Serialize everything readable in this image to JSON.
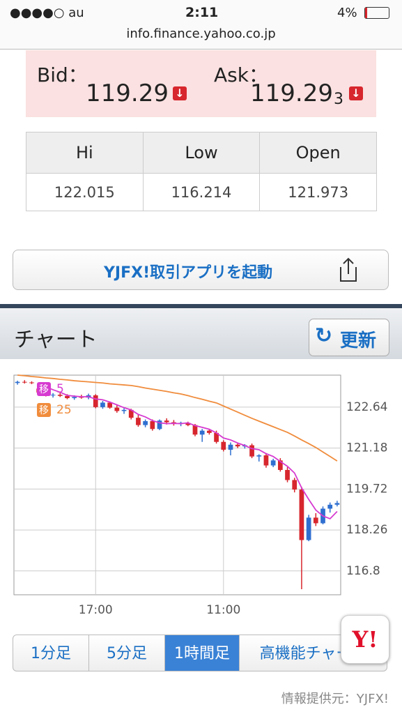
{
  "status_bar": {
    "carrier": "●●●●○ au",
    "time": "2:11",
    "battery": "4%"
  },
  "url": "info.finance.yahoo.co.jp",
  "quote": {
    "bid_label": "Bid：",
    "bid": "119.29",
    "ask_label": "Ask：",
    "ask": "119.29",
    "ask_extra_digit": "3"
  },
  "stats_table": {
    "headers": [
      "Hi",
      "Low",
      "Open"
    ],
    "values": [
      "122.015",
      "116.214",
      "121.973"
    ]
  },
  "app_button": "YJFX!取引アプリを起動",
  "section": {
    "title": "チャート",
    "refresh": "更新"
  },
  "chart": {
    "type": "candlestick",
    "categories": [
      null,
      null,
      null,
      null,
      null,
      null,
      null,
      null,
      null,
      null,
      null,
      "17:00",
      null,
      null,
      null,
      null,
      null,
      null,
      null,
      null,
      null,
      null,
      null,
      null,
      null,
      null,
      null,
      null,
      null,
      "11:00",
      null,
      null,
      null,
      null,
      null,
      null,
      null,
      null,
      null,
      null,
      null,
      null,
      null,
      null,
      null,
      null
    ],
    "candles": [
      {
        "open": 123.5,
        "high": 123.58,
        "low": 123.44,
        "close": 123.54
      },
      {
        "open": 123.54,
        "high": 123.6,
        "low": 123.48,
        "close": 123.52
      },
      {
        "open": 123.52,
        "high": 123.56,
        "low": 123.46,
        "close": 123.5
      },
      {
        "open": 123.3,
        "high": 123.36,
        "low": 123.1,
        "close": 123.16
      },
      {
        "open": 123.16,
        "high": 123.22,
        "low": 123.02,
        "close": 123.06
      },
      {
        "open": 123.06,
        "high": 123.14,
        "low": 122.98,
        "close": 123.08
      },
      {
        "open": 123.08,
        "high": 123.16,
        "low": 123.0,
        "close": 123.04
      },
      {
        "open": 123.04,
        "high": 123.1,
        "low": 122.92,
        "close": 122.96
      },
      {
        "open": 122.96,
        "high": 123.06,
        "low": 122.9,
        "close": 123.0
      },
      {
        "open": 123.0,
        "high": 123.08,
        "low": 122.94,
        "close": 122.98
      },
      {
        "open": 122.98,
        "high": 123.12,
        "low": 122.92,
        "close": 123.06
      },
      {
        "open": 123.06,
        "high": 123.1,
        "low": 122.6,
        "close": 122.64
      },
      {
        "open": 122.64,
        "high": 122.86,
        "low": 122.58,
        "close": 122.8
      },
      {
        "open": 122.8,
        "high": 122.84,
        "low": 122.58,
        "close": 122.62
      },
      {
        "open": 122.62,
        "high": 122.7,
        "low": 122.44,
        "close": 122.5
      },
      {
        "open": 122.5,
        "high": 122.6,
        "low": 122.4,
        "close": 122.54
      },
      {
        "open": 122.54,
        "high": 122.58,
        "low": 122.2,
        "close": 122.26
      },
      {
        "open": 122.26,
        "high": 122.4,
        "low": 121.94,
        "close": 122.0
      },
      {
        "open": 122.0,
        "high": 122.2,
        "low": 121.92,
        "close": 122.14
      },
      {
        "open": 122.14,
        "high": 122.2,
        "low": 121.8,
        "close": 121.86
      },
      {
        "open": 121.86,
        "high": 122.2,
        "low": 121.82,
        "close": 122.16
      },
      {
        "open": 122.16,
        "high": 122.24,
        "low": 122.02,
        "close": 122.1
      },
      {
        "open": 122.1,
        "high": 122.18,
        "low": 121.98,
        "close": 122.04
      },
      {
        "open": 122.04,
        "high": 122.12,
        "low": 121.96,
        "close": 122.08
      },
      {
        "open": 122.08,
        "high": 122.12,
        "low": 121.96,
        "close": 122.0
      },
      {
        "open": 122.0,
        "high": 122.04,
        "low": 121.6,
        "close": 121.66
      },
      {
        "open": 121.66,
        "high": 121.86,
        "low": 121.4,
        "close": 121.8
      },
      {
        "open": 121.8,
        "high": 121.86,
        "low": 121.66,
        "close": 121.72
      },
      {
        "open": 121.72,
        "high": 121.8,
        "low": 121.34,
        "close": 121.4
      },
      {
        "open": 121.4,
        "high": 121.46,
        "low": 121.06,
        "close": 121.12
      },
      {
        "open": 121.12,
        "high": 121.38,
        "low": 120.92,
        "close": 121.3
      },
      {
        "open": 121.3,
        "high": 121.36,
        "low": 121.18,
        "close": 121.24
      },
      {
        "open": 121.24,
        "high": 121.32,
        "low": 121.16,
        "close": 121.28
      },
      {
        "open": 121.28,
        "high": 121.34,
        "low": 120.82,
        "close": 120.88
      },
      {
        "open": 120.88,
        "high": 120.96,
        "low": 120.7,
        "close": 120.92
      },
      {
        "open": 120.92,
        "high": 121.0,
        "low": 120.48,
        "close": 120.56
      },
      {
        "open": 120.56,
        "high": 120.8,
        "low": 120.5,
        "close": 120.74
      },
      {
        "open": 120.74,
        "high": 120.82,
        "low": 120.34,
        "close": 120.4
      },
      {
        "open": 120.4,
        "high": 120.5,
        "low": 119.96,
        "close": 120.04
      },
      {
        "open": 120.04,
        "high": 120.12,
        "low": 119.6,
        "close": 119.7
      },
      {
        "open": 119.7,
        "high": 119.8,
        "low": 116.15,
        "close": 117.9
      },
      {
        "open": 117.9,
        "high": 118.8,
        "low": 117.86,
        "close": 118.7
      },
      {
        "open": 118.7,
        "high": 118.86,
        "low": 118.4,
        "close": 118.5
      },
      {
        "open": 118.5,
        "high": 119.1,
        "low": 118.46,
        "close": 119.02
      },
      {
        "open": 119.02,
        "high": 119.24,
        "low": 118.88,
        "close": 119.16
      },
      {
        "open": 119.16,
        "high": 119.3,
        "low": 119.1,
        "close": 119.22
      }
    ],
    "up_color": "#2f6fd0",
    "down_color": "#d7262d",
    "series": [
      {
        "name": "5",
        "color": "#d63ad0",
        "values": [
          null,
          null,
          null,
          null,
          123.36,
          123.26,
          123.17,
          123.06,
          123.03,
          123.01,
          123.01,
          122.93,
          122.9,
          122.82,
          122.72,
          122.62,
          122.54,
          122.38,
          122.29,
          122.16,
          122.08,
          122.05,
          122.06,
          122.05,
          122.08,
          121.98,
          121.92,
          121.85,
          121.72,
          121.54,
          121.47,
          121.36,
          121.27,
          121.16,
          121.12,
          120.98,
          120.88,
          120.7,
          120.53,
          120.29,
          119.76,
          119.35,
          118.97,
          118.76,
          118.66,
          118.92
        ]
      },
      {
        "name": "25",
        "color": "#f08c3c",
        "values": [
          123.78,
          123.76,
          123.73,
          123.71,
          123.68,
          123.66,
          123.63,
          123.61,
          123.58,
          123.56,
          123.54,
          123.52,
          123.5,
          123.47,
          123.45,
          123.43,
          123.41,
          123.37,
          123.32,
          123.28,
          123.24,
          123.2,
          123.15,
          123.11,
          123.05,
          122.98,
          122.92,
          122.85,
          122.79,
          122.68,
          122.57,
          122.46,
          122.35,
          122.24,
          122.14,
          122.04,
          121.94,
          121.84,
          121.74,
          121.61,
          121.47,
          121.34,
          121.2,
          121.04,
          120.88,
          120.72
        ]
      }
    ],
    "legend_badge": "移",
    "ylim": [
      115.95,
      123.78
    ],
    "yticks": [
      116.8,
      118.26,
      119.72,
      121.18,
      122.64
    ],
    "grid": true
  },
  "tabs": [
    "1分足",
    "5分足",
    "1時間足",
    "高機能チャート"
  ],
  "yahoo_logo": "Y!",
  "footer": "情報提供元：YJFX!"
}
